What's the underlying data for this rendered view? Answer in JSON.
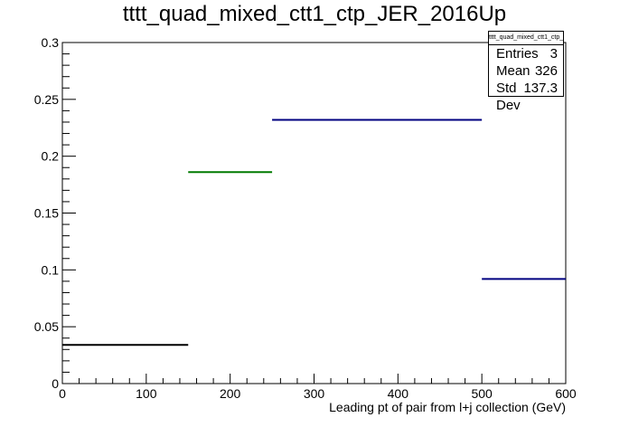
{
  "chart_data": {
    "type": "histogram",
    "title": "tttt_quad_mixed_ctt1_ctp_JER_2016Up",
    "xlabel": "Leading pt of pair from l+j collection (GeV)",
    "ylabel": "",
    "xlim": [
      0,
      600
    ],
    "ylim": [
      0,
      0.3
    ],
    "x_ticks": [
      "0",
      "100",
      "200",
      "300",
      "400",
      "500",
      "600"
    ],
    "y_ticks": [
      "0",
      "0.05",
      "0.1",
      "0.15",
      "0.2",
      "0.25",
      "0.3"
    ],
    "bins": [
      {
        "x_low": 0,
        "x_high": 150,
        "value": 0.034,
        "color": "#000000"
      },
      {
        "x_low": 150,
        "x_high": 250,
        "value": 0.186,
        "color": "#007a00"
      },
      {
        "x_low": 250,
        "x_high": 500,
        "value": 0.232,
        "color": "#000080"
      },
      {
        "x_low": 500,
        "x_high": 600,
        "value": 0.092,
        "color": "#000080"
      }
    ],
    "grid": false,
    "stats_box": {
      "title": "tttt_quad_mixed_ctt1_ctp_JER_2016Up",
      "entries_label": "Entries",
      "entries_value": "3",
      "mean_label": "Mean",
      "mean_value": "326",
      "stddev_label": "Std Dev",
      "stddev_value": "137.3"
    }
  }
}
